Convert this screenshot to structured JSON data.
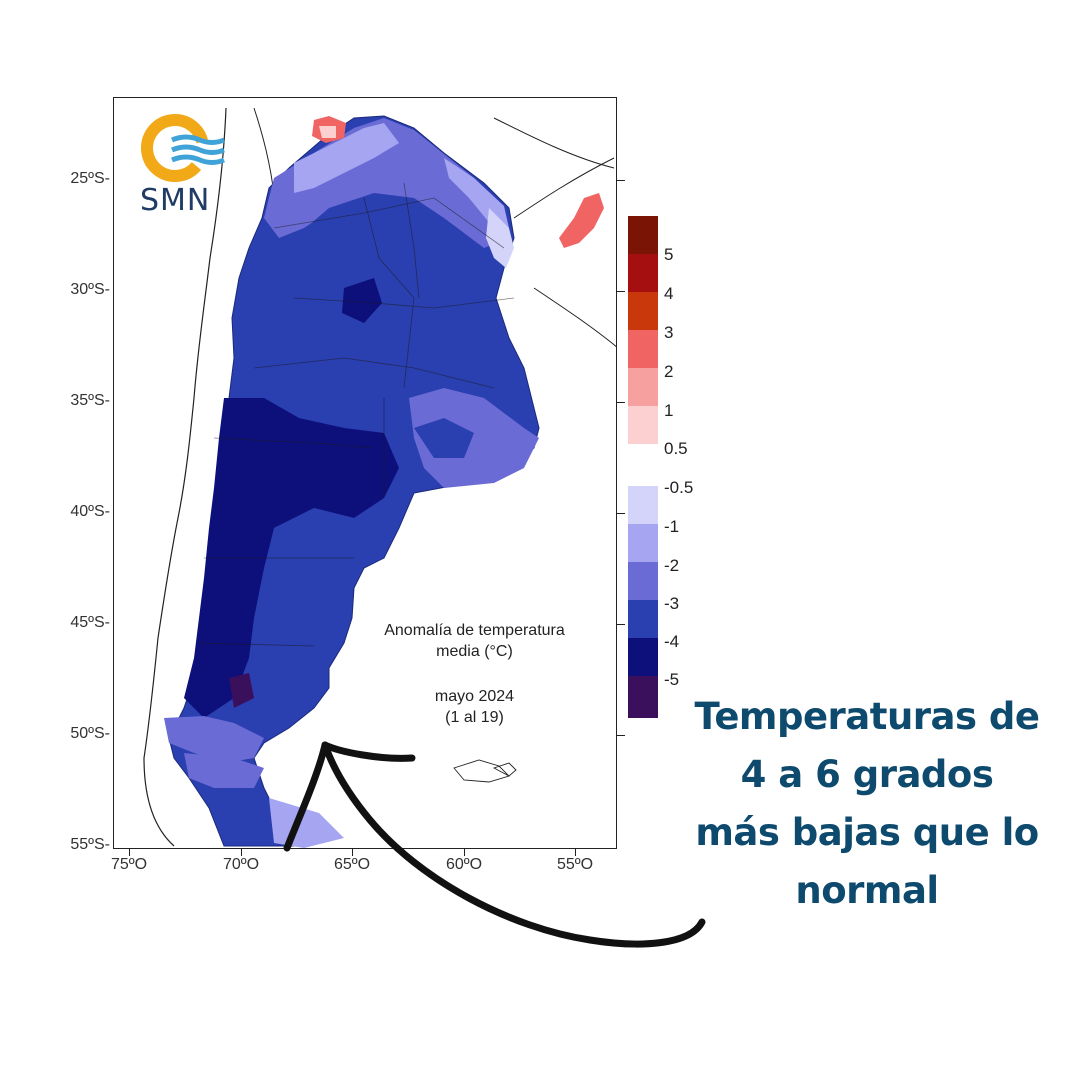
{
  "logo": {
    "text": "SMN",
    "icon": "smn-sun-waves-logo",
    "colors": {
      "sun": "#f2a917",
      "waves": "#3fa3d8",
      "text": "#1f3b66"
    }
  },
  "map": {
    "latitude_labels": [
      "25ºS-",
      "30ºS-",
      "35ºS-",
      "40ºS-",
      "45ºS-",
      "50ºS-",
      "55ºS-"
    ],
    "longitude_labels": [
      "75ºO",
      "70ºO",
      "65ºO",
      "60ºO",
      "55ºO"
    ],
    "caption_line1": "Anomalía de temperatura",
    "caption_line2": "media (°C)",
    "period_line1": "mayo 2024",
    "period_line2": "(1 al 19)"
  },
  "legend": {
    "warm": [
      {
        "label": "5",
        "color": "#7a1405"
      },
      {
        "label": "4",
        "color": "#a50f0f"
      },
      {
        "label": "3",
        "color": "#c8380a"
      },
      {
        "label": "2",
        "color": "#f06464"
      },
      {
        "label": "1",
        "color": "#f7a0a0"
      },
      {
        "label": "0.5",
        "color": "#fcd0d0"
      }
    ],
    "cold": [
      {
        "label": "-0.5",
        "color": "#d4d4fa"
      },
      {
        "label": "-1",
        "color": "#a5a5f2"
      },
      {
        "label": "-2",
        "color": "#6b6bd6"
      },
      {
        "label": "-3",
        "color": "#2a3fb0"
      },
      {
        "label": "-4",
        "color": "#0d0f7a"
      },
      {
        "label": "-5",
        "color": "#3a0f5c"
      }
    ]
  },
  "headline": {
    "line1": "Temperaturas de",
    "line2": "4 a 6 grados",
    "line3": "más bajas que lo",
    "line4": "normal",
    "color": "#0e4a6e"
  }
}
